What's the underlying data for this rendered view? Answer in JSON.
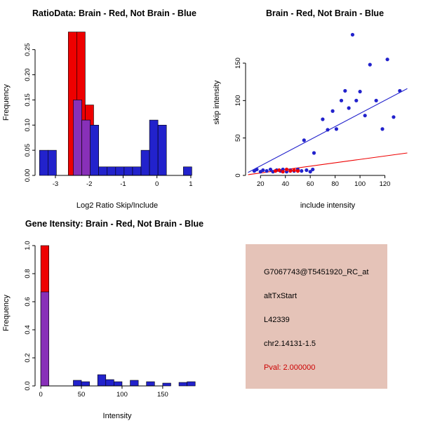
{
  "colors": {
    "red": "#EE0000",
    "blue": "#2222CC",
    "purple": "#8830B8",
    "box_bg": "#E5C3B8",
    "pval_red": "#CC0000",
    "text_black": "#000000"
  },
  "chart_data": [
    {
      "type": "histogram",
      "title": "RatioData: Brain - Red, Not Brain - Blue",
      "xlabel": "Log2 Ratio Skip/Include",
      "ylabel": "Frequency",
      "xlim": [
        -3.6,
        1.25
      ],
      "ylim": [
        0,
        0.29
      ],
      "xticks": [
        -3,
        -2,
        -1,
        0,
        1
      ],
      "yticks": [
        0,
        0.05,
        0.1,
        0.15,
        0.2,
        0.25
      ],
      "ytick_labels": [
        "0.00",
        "0.05",
        "0.10",
        "0.15",
        "0.20",
        "0.25"
      ],
      "legend": [
        {
          "name": "Brain",
          "color": "red"
        },
        {
          "name": "Not Brain",
          "color": "blue"
        }
      ],
      "bars": [
        {
          "color": "red",
          "x0": -2.62,
          "x1": -2.37,
          "h": 0.285
        },
        {
          "color": "red",
          "x0": -2.37,
          "x1": -2.12,
          "h": 0.285
        },
        {
          "color": "red",
          "x0": -2.12,
          "x1": -1.87,
          "h": 0.14
        },
        {
          "color": "purple",
          "x0": -2.47,
          "x1": -2.22,
          "h": 0.15
        },
        {
          "color": "purple",
          "x0": -2.22,
          "x1": -1.97,
          "h": 0.11
        },
        {
          "color": "blue",
          "x0": -3.47,
          "x1": -3.22,
          "h": 0.05
        },
        {
          "color": "blue",
          "x0": -3.22,
          "x1": -2.97,
          "h": 0.05
        },
        {
          "color": "blue",
          "x0": -1.97,
          "x1": -1.72,
          "h": 0.1
        },
        {
          "color": "blue",
          "x0": -1.72,
          "x1": -1.47,
          "h": 0.017
        },
        {
          "color": "blue",
          "x0": -1.47,
          "x1": -1.22,
          "h": 0.017
        },
        {
          "color": "blue",
          "x0": -1.22,
          "x1": -0.97,
          "h": 0.017
        },
        {
          "color": "blue",
          "x0": -0.97,
          "x1": -0.72,
          "h": 0.017
        },
        {
          "color": "blue",
          "x0": -0.72,
          "x1": -0.47,
          "h": 0.017
        },
        {
          "color": "blue",
          "x0": -0.47,
          "x1": -0.22,
          "h": 0.05
        },
        {
          "color": "blue",
          "x0": -0.22,
          "x1": 0.03,
          "h": 0.11
        },
        {
          "color": "blue",
          "x0": 0.03,
          "x1": 0.28,
          "h": 0.1
        },
        {
          "color": "blue",
          "x0": 0.78,
          "x1": 1.03,
          "h": 0.017
        }
      ]
    },
    {
      "type": "scatter",
      "title": "Brain - Red, Not Brain - Blue",
      "xlabel": "include intensity",
      "ylabel": "skip intensity",
      "xlim": [
        8,
        140
      ],
      "ylim": [
        0,
        195
      ],
      "xticks": [
        20,
        40,
        60,
        80,
        100,
        120
      ],
      "yticks": [
        0,
        50,
        100,
        150
      ],
      "series": [
        {
          "name": "Not Brain",
          "color": "blue",
          "points": [
            [
              15,
              6
            ],
            [
              17,
              8
            ],
            [
              20,
              5
            ],
            [
              22,
              7
            ],
            [
              25,
              6
            ],
            [
              28,
              8
            ],
            [
              30,
              5
            ],
            [
              33,
              7
            ],
            [
              36,
              6
            ],
            [
              38,
              8
            ],
            [
              41,
              5
            ],
            [
              44,
              7
            ],
            [
              47,
              6
            ],
            [
              50,
              8
            ],
            [
              53,
              6
            ],
            [
              57,
              7
            ],
            [
              60,
              5
            ],
            [
              62,
              8
            ],
            [
              55,
              47
            ],
            [
              63,
              30
            ],
            [
              70,
              75
            ],
            [
              74,
              61
            ],
            [
              78,
              86
            ],
            [
              81,
              62
            ],
            [
              85,
              100
            ],
            [
              88,
              113
            ],
            [
              91,
              90
            ],
            [
              94,
              188
            ],
            [
              97,
              100
            ],
            [
              100,
              112
            ],
            [
              104,
              80
            ],
            [
              108,
              148
            ],
            [
              113,
              100
            ],
            [
              118,
              62
            ],
            [
              122,
              155
            ],
            [
              127,
              78
            ],
            [
              132,
              113
            ]
          ]
        },
        {
          "name": "Brain",
          "color": "red",
          "points": [
            [
              32,
              6
            ],
            [
              35,
              7
            ],
            [
              38,
              5
            ],
            [
              41,
              8
            ],
            [
              44,
              6
            ],
            [
              47,
              7
            ],
            [
              50,
              6
            ]
          ]
        }
      ],
      "lines": [
        {
          "color": "blue",
          "from": [
            10,
            4
          ],
          "to": [
            138,
            116
          ]
        },
        {
          "color": "red",
          "from": [
            10,
            1
          ],
          "to": [
            138,
            30
          ]
        }
      ]
    },
    {
      "type": "histogram",
      "title": "Gene Itensity: Brain - Red, Not Brain - Blue",
      "xlabel": "Intensity",
      "ylabel": "Frequency",
      "xlim": [
        -7,
        195
      ],
      "ylim": [
        0,
        1.04
      ],
      "xticks": [
        0,
        50,
        100,
        150
      ],
      "yticks": [
        0,
        0.2,
        0.4,
        0.6,
        0.8,
        1.0
      ],
      "ytick_labels": [
        "0.0",
        "0.2",
        "0.4",
        "0.6",
        "0.8",
        "1.0"
      ],
      "legend": [
        {
          "name": "Brain",
          "color": "red"
        },
        {
          "name": "Not Brain",
          "color": "blue"
        }
      ],
      "bars": [
        {
          "color": "red",
          "x0": 0,
          "x1": 10,
          "h": 1.0
        },
        {
          "color": "purple",
          "x0": 0,
          "x1": 10,
          "h": 0.67
        },
        {
          "color": "blue",
          "x0": 40,
          "x1": 50,
          "h": 0.04
        },
        {
          "color": "blue",
          "x0": 50,
          "x1": 60,
          "h": 0.03
        },
        {
          "color": "blue",
          "x0": 70,
          "x1": 80,
          "h": 0.08
        },
        {
          "color": "blue",
          "x0": 80,
          "x1": 90,
          "h": 0.045
        },
        {
          "color": "blue",
          "x0": 90,
          "x1": 100,
          "h": 0.03
        },
        {
          "color": "blue",
          "x0": 110,
          "x1": 120,
          "h": 0.04
        },
        {
          "color": "blue",
          "x0": 130,
          "x1": 140,
          "h": 0.03
        },
        {
          "color": "blue",
          "x0": 150,
          "x1": 160,
          "h": 0.02
        },
        {
          "color": "blue",
          "x0": 170,
          "x1": 180,
          "h": 0.025
        },
        {
          "color": "blue",
          "x0": 180,
          "x1": 190,
          "h": 0.03
        }
      ]
    }
  ],
  "info_panel": {
    "lines": [
      {
        "text": "G7067743@T5451920_RC_at",
        "color": "#000000"
      },
      {
        "text": "altTxStart",
        "color": "#000000"
      },
      {
        "text": "L42339",
        "color": "#000000"
      },
      {
        "text": "chr2.14131-1.5",
        "color": "#000000"
      },
      {
        "text": "Pval: 2.000000",
        "color": "#CC0000"
      }
    ]
  }
}
